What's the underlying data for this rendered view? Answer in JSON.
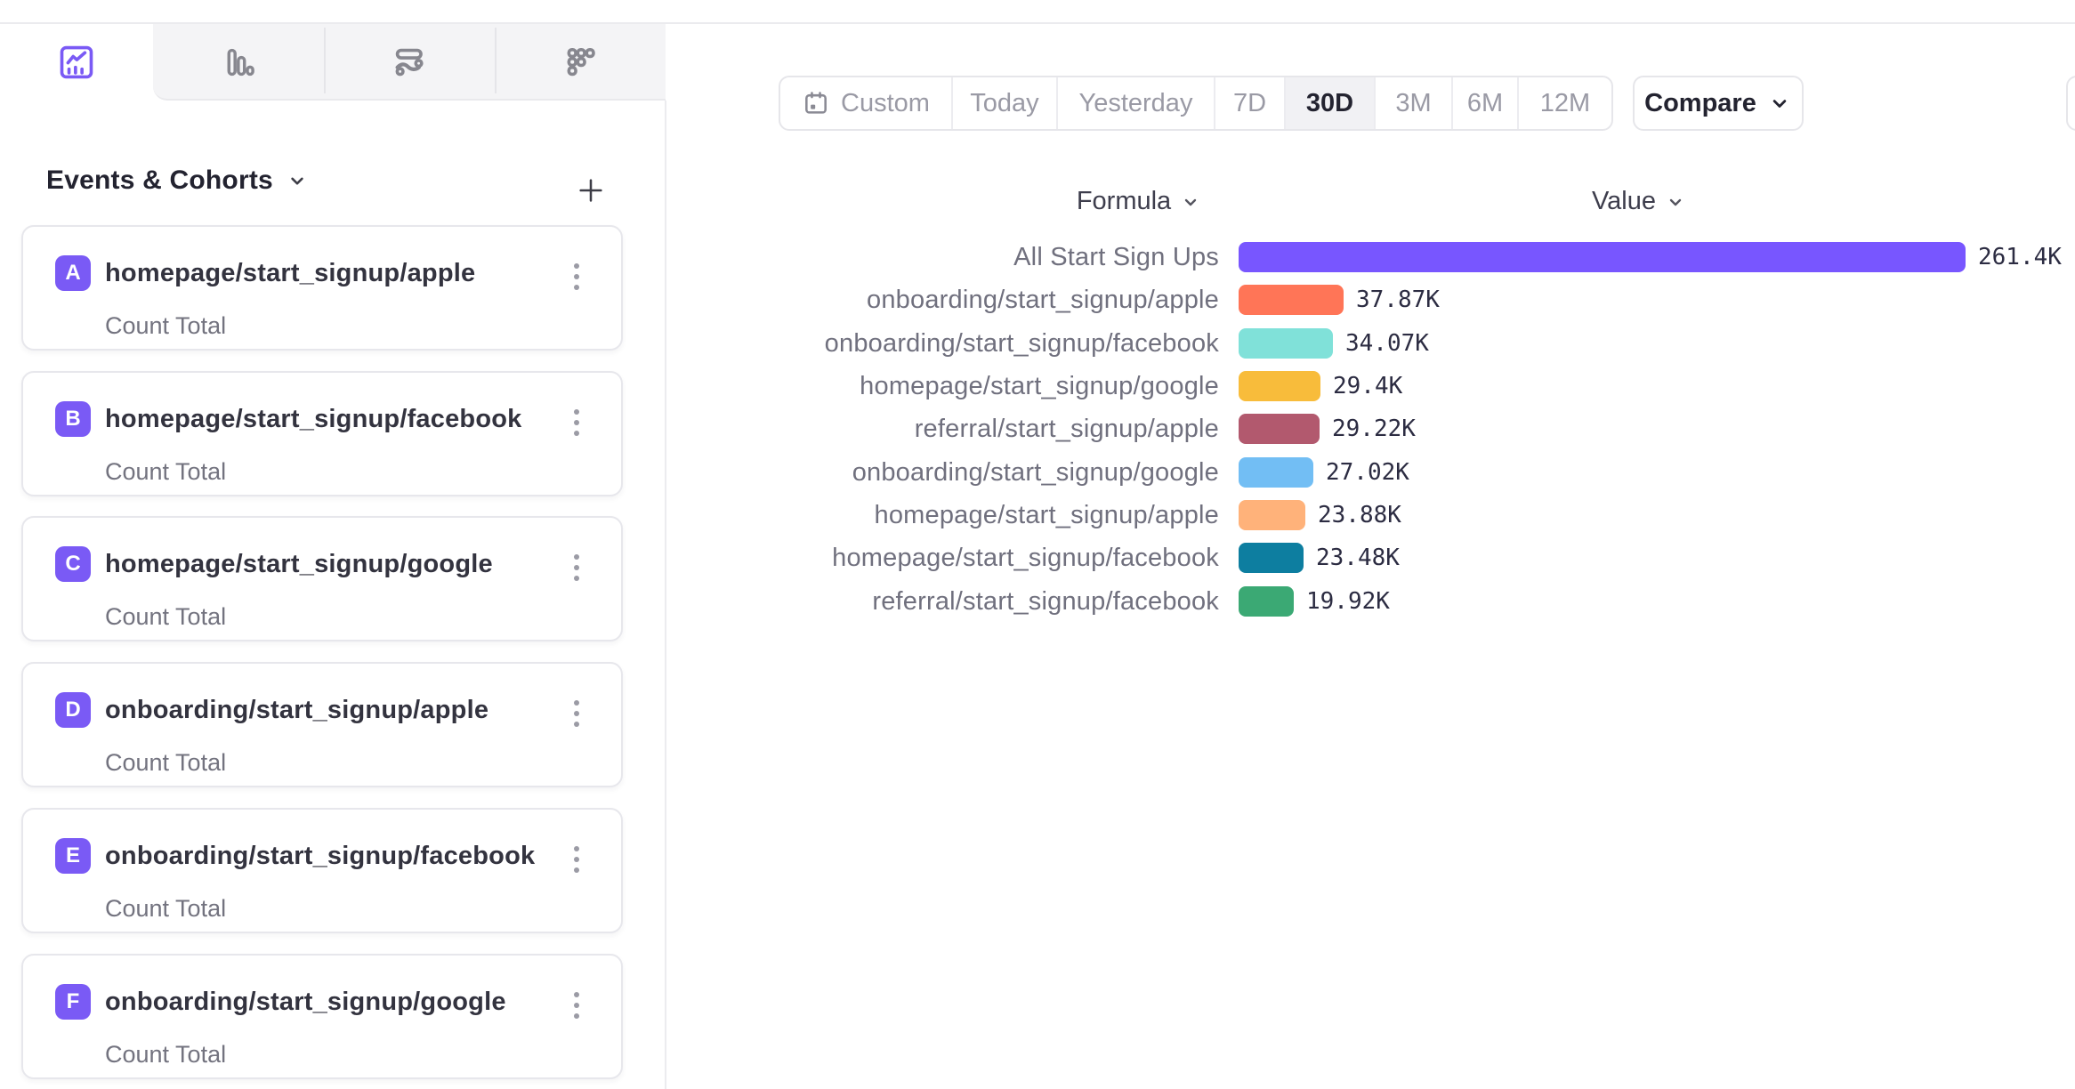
{
  "tabs": {
    "items": [
      {
        "icon": "insights-line-chart-icon",
        "active": true
      },
      {
        "icon": "bar-chart-icon",
        "active": false
      },
      {
        "icon": "flows-icon",
        "active": false
      },
      {
        "icon": "retention-dots-icon",
        "active": false
      }
    ]
  },
  "sidebar": {
    "header": {
      "title": "Events & Cohorts"
    },
    "add_button": "+",
    "events": [
      {
        "letter": "A",
        "name": "homepage/start_signup/apple",
        "metric": "Count Total"
      },
      {
        "letter": "B",
        "name": "homepage/start_signup/facebook",
        "metric": "Count Total"
      },
      {
        "letter": "C",
        "name": "homepage/start_signup/google",
        "metric": "Count Total"
      },
      {
        "letter": "D",
        "name": "onboarding/start_signup/apple",
        "metric": "Count Total"
      },
      {
        "letter": "E",
        "name": "onboarding/start_signup/facebook",
        "metric": "Count Total"
      },
      {
        "letter": "F",
        "name": "onboarding/start_signup/google",
        "metric": "Count Total"
      }
    ]
  },
  "toolbar": {
    "date_ranges": [
      "Custom",
      "Today",
      "Yesterday",
      "7D",
      "30D",
      "3M",
      "6M",
      "12M"
    ],
    "active_range": "30D",
    "compare_label": "Compare"
  },
  "chart": {
    "formula_header": "Formula",
    "value_header": "Value"
  },
  "chart_data": {
    "type": "bar",
    "orientation": "horizontal",
    "title": "",
    "xlabel": "Value",
    "ylabel": "Formula",
    "xlim": [
      0,
      261400
    ],
    "grid": false,
    "categories": [
      "All Start Sign Ups",
      "onboarding/start_signup/apple",
      "onboarding/start_signup/facebook",
      "homepage/start_signup/google",
      "referral/start_signup/apple",
      "onboarding/start_signup/google",
      "homepage/start_signup/apple",
      "homepage/start_signup/facebook",
      "referral/start_signup/facebook"
    ],
    "values": [
      261400,
      37870,
      34070,
      29400,
      29220,
      27020,
      23880,
      23480,
      19920
    ],
    "display_values": [
      "261.4K",
      "37.87K",
      "34.07K",
      "29.4K",
      "29.22K",
      "27.02K",
      "23.88K",
      "23.48K",
      "19.92K"
    ],
    "colors": [
      "#7856FF",
      "#FF7557",
      "#80E1D9",
      "#F8BC3B",
      "#B2596E",
      "#72BEF4",
      "#FFB27A",
      "#0D7EA0",
      "#3BA974"
    ]
  },
  "colors": {
    "accent": "#7856FF",
    "active_segment_bg": "#F1F1F4",
    "card_border": "#E7E7EC"
  }
}
